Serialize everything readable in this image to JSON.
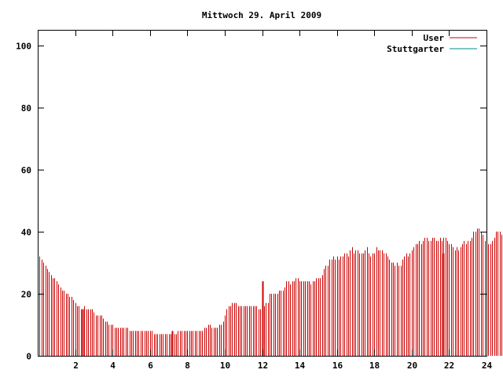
{
  "chart_data": {
    "type": "bar",
    "title": "Mittwoch 29. April 2009",
    "xlabel": "",
    "ylabel": "",
    "xlim": [
      0,
      24
    ],
    "ylim": [
      0,
      105
    ],
    "xticks": [
      2,
      4,
      6,
      8,
      10,
      12,
      14,
      16,
      18,
      20,
      22,
      24
    ],
    "yticks": [
      0,
      20,
      40,
      60,
      80,
      100
    ],
    "grid": false,
    "legend_position": "top-right",
    "series": [
      {
        "name": "User",
        "color": "#cc0000",
        "x_start": 0,
        "x_step": 0.1,
        "values": [
          33,
          32,
          31,
          30,
          29,
          28,
          27,
          26,
          25,
          25,
          24,
          23,
          22,
          21,
          21,
          20,
          20,
          19,
          19,
          18,
          17,
          16,
          16,
          15,
          15,
          16,
          15,
          15,
          15,
          15,
          14,
          13,
          13,
          13,
          13,
          12,
          11,
          11,
          10,
          10,
          10,
          9,
          9,
          9,
          9,
          9,
          9,
          9,
          9,
          8,
          8,
          8,
          8,
          8,
          8,
          8,
          8,
          8,
          8,
          8,
          8,
          8,
          7,
          7,
          7,
          7,
          7,
          7,
          7,
          7,
          7,
          7,
          7,
          7,
          7,
          8,
          8,
          8,
          8,
          8,
          8,
          8,
          8,
          8,
          8,
          8,
          8,
          8,
          8,
          9,
          9,
          10,
          10,
          9,
          9,
          9,
          9,
          10,
          10,
          11,
          13,
          15,
          16,
          16,
          17,
          17,
          17,
          16,
          16,
          16,
          16,
          16,
          16,
          16,
          16,
          16,
          16,
          16,
          15,
          15,
          15,
          16,
          17,
          17,
          20,
          20,
          20,
          20,
          20,
          21,
          21,
          21,
          22,
          24,
          24,
          23,
          24,
          24,
          25,
          25,
          24,
          24,
          24,
          24,
          24,
          24,
          23,
          24,
          24,
          25,
          25,
          25,
          26,
          28,
          29,
          29,
          31,
          31,
          32,
          31,
          32,
          31,
          32,
          32,
          33,
          33,
          32,
          34,
          35,
          33,
          34,
          34,
          33,
          33,
          33,
          34,
          35,
          33,
          32,
          33,
          33,
          35,
          34,
          34,
          34,
          33,
          33,
          32,
          31,
          30,
          30,
          29,
          30,
          29,
          29,
          31,
          32,
          33,
          32,
          33,
          34,
          35,
          36,
          36,
          37,
          36,
          37,
          38,
          38,
          37,
          37,
          38,
          38,
          37,
          37,
          38,
          37,
          38,
          38,
          37,
          36,
          36,
          35,
          34,
          35,
          34,
          35,
          36,
          37,
          36,
          37,
          37,
          38,
          40,
          40,
          41,
          41,
          40,
          39,
          37,
          37,
          36,
          36,
          37,
          38,
          40,
          40,
          40,
          39,
          40,
          42,
          40,
          39,
          40,
          39,
          40,
          38,
          36,
          36,
          33,
          32,
          31,
          32,
          32,
          33,
          33,
          34,
          34,
          34,
          34,
          35,
          35,
          36,
          35,
          34,
          33,
          32,
          30,
          28,
          27,
          26,
          25,
          24,
          22,
          24,
          23,
          24,
          23,
          22,
          21
        ]
      },
      {
        "name": "Stuttgarter",
        "color": "#008b8b",
        "values": []
      }
    ],
    "highlight_bars": [
      {
        "x": 2.4,
        "value": 15
      },
      {
        "x": 7.2,
        "value": 8
      },
      {
        "x": 12.0,
        "value": 24
      },
      {
        "x": 21.7,
        "value": 33
      }
    ]
  }
}
